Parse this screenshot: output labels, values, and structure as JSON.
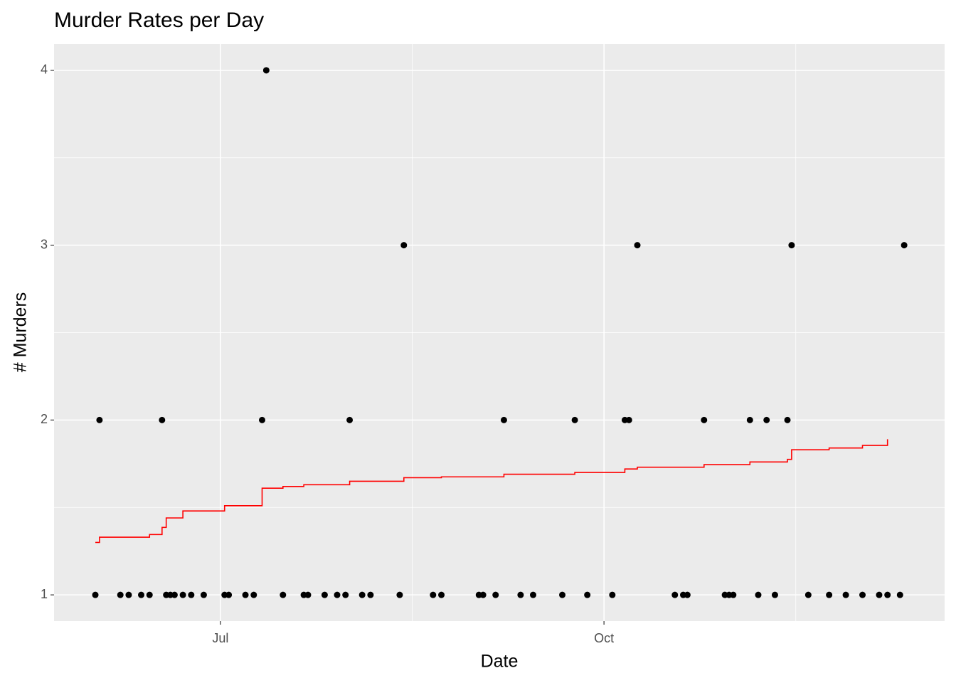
{
  "chart_data": {
    "type": "scatter",
    "title": "Murder Rates per Day",
    "x_label": "Date",
    "y_label": "# Murders",
    "xlim": [
      142.1,
      355.7
    ],
    "xticks": [
      {
        "value": 182,
        "label": "Jul"
      },
      {
        "value": 274,
        "label": "Oct"
      }
    ],
    "ylim": [
      0.85,
      4.15
    ],
    "yticks": [
      1,
      2,
      3,
      4
    ],
    "grid": true,
    "series": [
      {
        "mark": "point",
        "color": "#000000",
        "x": [
          152,
          153,
          158,
          160,
          163,
          165,
          168,
          169,
          170,
          171,
          173,
          175,
          178,
          183,
          184,
          188,
          190,
          192,
          193,
          197,
          202,
          203,
          207,
          210,
          212,
          213,
          216,
          218,
          225,
          226,
          233,
          235,
          244,
          245,
          248,
          250,
          254,
          257,
          264,
          267,
          270,
          276,
          279,
          280,
          282,
          291,
          293,
          294,
          298,
          303,
          304,
          305,
          309,
          311,
          313,
          315,
          318,
          319,
          323,
          328,
          332,
          336,
          340,
          342,
          345,
          346
        ],
        "values": [
          1,
          2,
          1,
          1,
          1,
          1,
          2,
          1,
          1,
          1,
          1,
          1,
          1,
          1,
          1,
          1,
          1,
          2,
          4,
          1,
          1,
          1,
          1,
          1,
          1,
          2,
          1,
          1,
          1,
          3,
          1,
          1,
          1,
          1,
          1,
          2,
          1,
          1,
          1,
          2,
          1,
          1,
          2,
          2,
          3,
          1,
          1,
          1,
          2,
          1,
          1,
          1,
          2,
          1,
          2,
          1,
          2,
          3,
          1,
          1,
          1,
          1,
          1,
          1,
          1,
          3
        ]
      },
      {
        "mark": "step",
        "color": "#ff0000",
        "x": [
          152,
          153,
          165,
          168,
          169,
          173,
          183,
          192,
          197,
          202,
          213,
          226,
          235,
          250,
          267,
          279,
          282,
          298,
          309,
          318,
          319,
          328,
          336,
          342
        ],
        "values": [
          1.3,
          1.33,
          1.345,
          1.386,
          1.44,
          1.48,
          1.51,
          1.61,
          1.62,
          1.63,
          1.65,
          1.67,
          1.675,
          1.69,
          1.7,
          1.72,
          1.73,
          1.745,
          1.76,
          1.775,
          1.83,
          1.84,
          1.855,
          1.89
        ]
      }
    ]
  }
}
